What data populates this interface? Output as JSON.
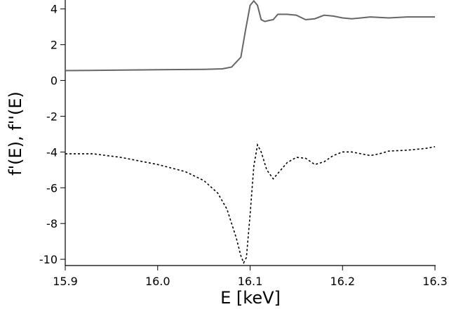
{
  "chart_data": {
    "type": "line",
    "xlabel": "E [keV]",
    "ylabel": "f'(E), f''(E)",
    "xlim": [
      15.9,
      16.3
    ],
    "xticks": [
      15.9,
      {
        "value": 16,
        "label": "16.0"
      },
      16.1,
      16.2,
      16.3
    ],
    "ylim": [
      -10.35,
      4.5
    ],
    "yticks": [
      -10,
      -8,
      -6,
      -4,
      -2,
      0,
      2,
      4
    ],
    "series": [
      {
        "color": "#666666",
        "style": "solid",
        "x": [
          15.9,
          16.0,
          16.05,
          16.07,
          16.08,
          16.09,
          16.095,
          16.1,
          16.104,
          16.108,
          16.112,
          16.116,
          16.12,
          16.125,
          16.13,
          16.14,
          16.15,
          16.16,
          16.17,
          16.18,
          16.19,
          16.2,
          16.21,
          16.22,
          16.23,
          16.25,
          16.27,
          16.29,
          16.3
        ],
        "values": [
          0.55,
          0.6,
          0.62,
          0.65,
          0.75,
          1.3,
          2.8,
          4.2,
          4.45,
          4.2,
          3.4,
          3.3,
          3.35,
          3.4,
          3.7,
          3.7,
          3.65,
          3.4,
          3.45,
          3.65,
          3.6,
          3.5,
          3.45,
          3.5,
          3.55,
          3.5,
          3.55,
          3.55,
          3.55
        ]
      },
      {
        "color": "#000000",
        "style": "dashed",
        "x": [
          15.9,
          15.93,
          15.96,
          16.0,
          16.03,
          16.05,
          16.065,
          16.075,
          16.085,
          16.09,
          16.093,
          16.096,
          16.1,
          16.104,
          16.108,
          16.112,
          16.118,
          16.125,
          16.13,
          16.14,
          16.15,
          16.16,
          16.17,
          16.18,
          16.19,
          16.2,
          16.21,
          16.22,
          16.23,
          16.24,
          16.25,
          16.27,
          16.29,
          16.3
        ],
        "values": [
          -4.1,
          -4.1,
          -4.3,
          -4.7,
          -5.1,
          -5.6,
          -6.3,
          -7.2,
          -8.8,
          -9.8,
          -10.2,
          -9.9,
          -7.5,
          -4.8,
          -3.6,
          -4.0,
          -5.0,
          -5.5,
          -5.2,
          -4.6,
          -4.3,
          -4.35,
          -4.7,
          -4.55,
          -4.2,
          -4.0,
          -4.0,
          -4.1,
          -4.2,
          -4.1,
          -3.95,
          -3.9,
          -3.8,
          -3.7
        ]
      }
    ]
  }
}
